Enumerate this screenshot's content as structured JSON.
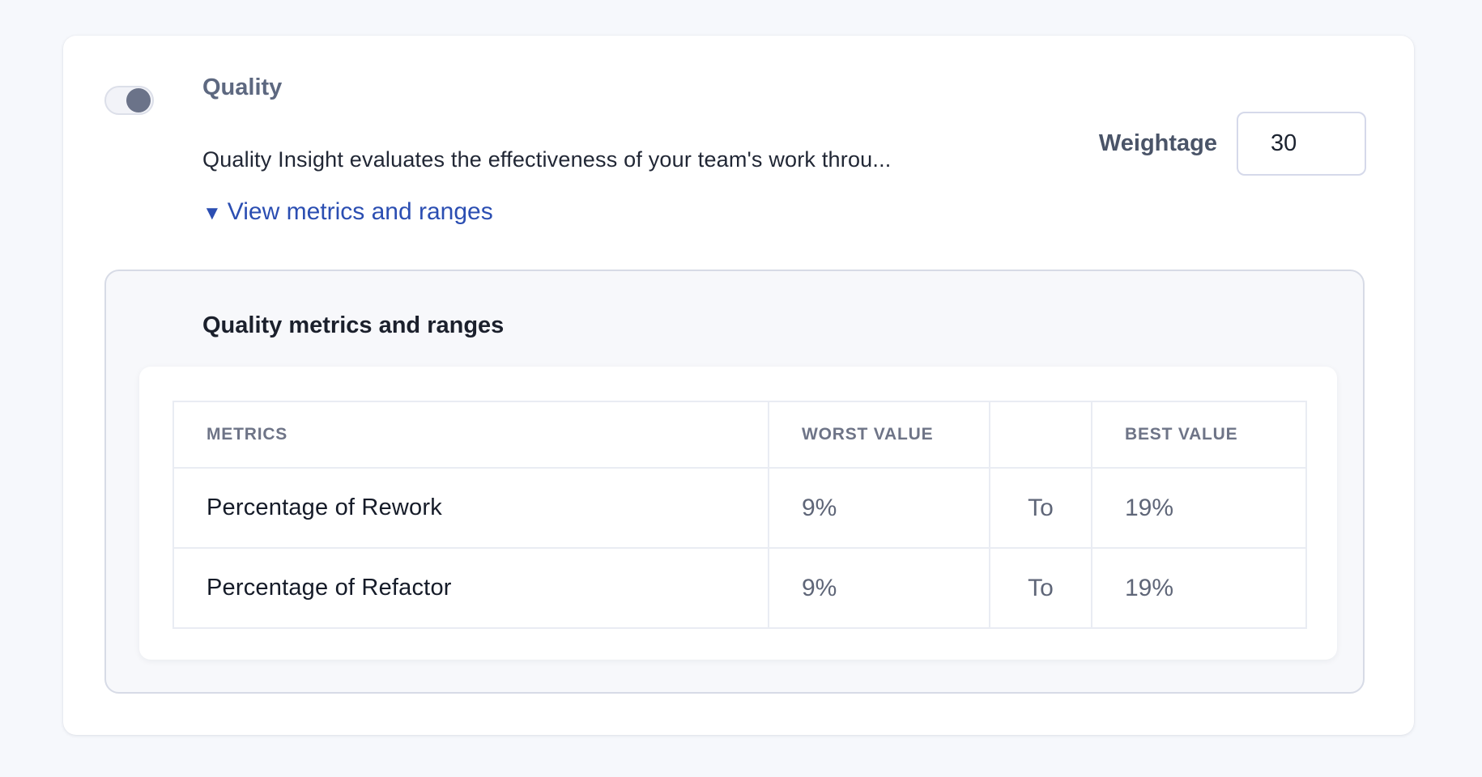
{
  "colors": {
    "page_background": "#f6f8fc",
    "card_background": "#ffffff",
    "panel_background": "#f7f8fb",
    "link_blue": "#2b4eb2",
    "toggle_knob": "#6b7389",
    "table_border": "#e9ecf3",
    "muted_value_text": "#5f6678"
  },
  "card": {
    "quality_section": {
      "toggle": {
        "state": "on"
      },
      "title": "Quality",
      "description": "Quality Insight evaluates the effectiveness of your team's work throu...",
      "weightage": {
        "label": "Weightage",
        "value": "30"
      },
      "metrics_link": {
        "icon": "▼",
        "label": "View metrics and ranges"
      }
    },
    "metrics_panel": {
      "heading": "Quality metrics and ranges",
      "table": {
        "columns": {
          "metrics": "METRICS",
          "worst": "WORST VALUE",
          "sep": "",
          "best": "BEST VALUE"
        },
        "rows": [
          {
            "metric": "Percentage of Rework",
            "worst": "9%",
            "separator": "To",
            "best": "19%"
          },
          {
            "metric": "Percentage of Refactor",
            "worst": "9%",
            "separator": "To",
            "best": "19%"
          }
        ]
      }
    }
  }
}
